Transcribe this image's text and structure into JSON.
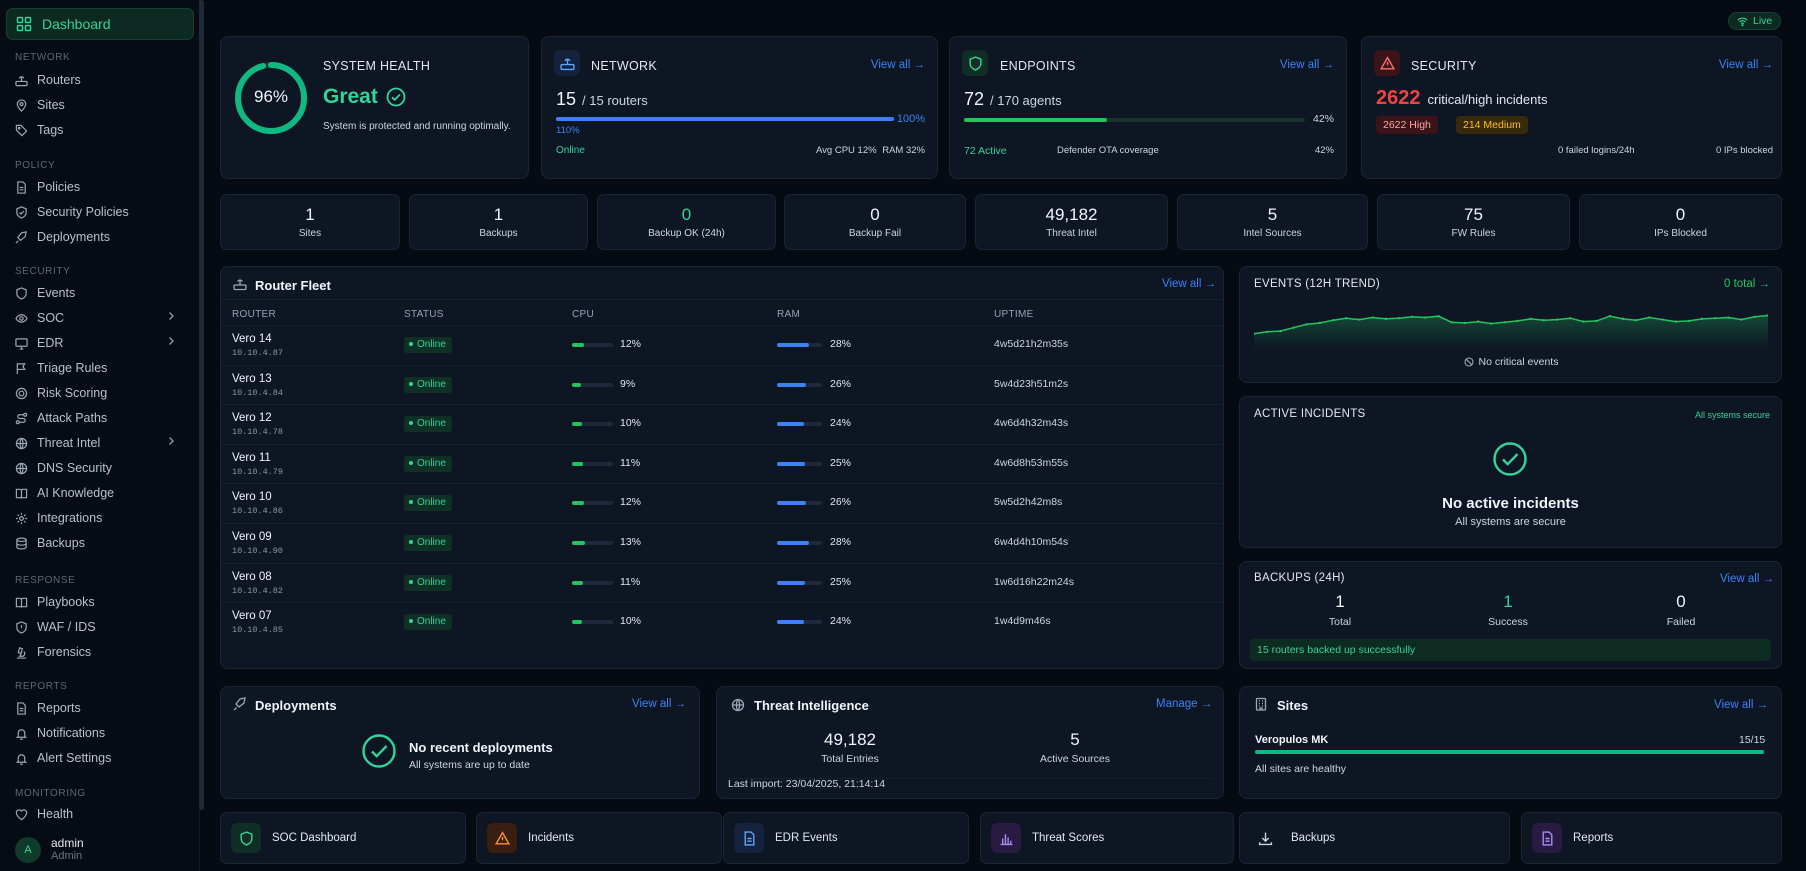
{
  "sidebar": {
    "active": "Dashboard",
    "sections": [
      {
        "title": "NETWORK",
        "items": [
          "Routers",
          "Sites",
          "Tags"
        ]
      },
      {
        "title": "POLICY",
        "items": [
          "Policies",
          "Security Policies",
          "Deployments"
        ]
      },
      {
        "title": "SECURITY",
        "items": [
          "Events",
          "SOC",
          "EDR",
          "Triage Rules",
          "Risk Scoring",
          "Attack Paths",
          "Threat Intel",
          "DNS Security",
          "AI Knowledge",
          "Integrations",
          "Backups"
        ]
      },
      {
        "title": "RESPONSE",
        "items": [
          "Playbooks",
          "WAF / IDS",
          "Forensics"
        ]
      },
      {
        "title": "REPORTS",
        "items": [
          "Reports",
          "Notifications",
          "Alert Settings"
        ]
      },
      {
        "title": "MONITORING",
        "items": [
          "Health"
        ]
      }
    ],
    "user": {
      "initial": "A",
      "name": "admin",
      "role": "Admin"
    }
  },
  "live_label": "Live",
  "health": {
    "title": "SYSTEM HEALTH",
    "percent": "96%",
    "percent_value": 96,
    "status": "Great",
    "desc": "System is protected and running optimally."
  },
  "network": {
    "title": "NETWORK",
    "link": "View all →",
    "count": "15",
    "total": "/ 15 routers",
    "bar_pct": "100%",
    "bar_value": 100,
    "sub": "110%",
    "status": "Online",
    "cpu": "Avg CPU 12%",
    "ram": "RAM 32%"
  },
  "endpoints": {
    "title": "ENDPOINTS",
    "link": "View all →",
    "count": "72",
    "total": "/ 170 agents",
    "bar_pct": "42%",
    "bar_value": 42,
    "active": "72 Active",
    "coverage_label": "Defender OTA coverage",
    "coverage": "42%"
  },
  "security": {
    "title": "SECURITY",
    "link": "View all →",
    "count": "2622",
    "label": "critical/high incidents",
    "high": "2622 High",
    "medium": "214 Medium",
    "failed_logins": "0 failed logins/24h",
    "ips_blocked": "0 IPs blocked"
  },
  "stats": [
    {
      "value": "1",
      "label": "Sites"
    },
    {
      "value": "1",
      "label": "Backups"
    },
    {
      "value": "0",
      "label": "Backup OK (24h)"
    },
    {
      "value": "0",
      "label": "Backup Fail"
    },
    {
      "value": "49,182",
      "label": "Threat Intel"
    },
    {
      "value": "5",
      "label": "Intel Sources"
    },
    {
      "value": "75",
      "label": "FW Rules"
    },
    {
      "value": "0",
      "label": "IPs Blocked"
    }
  ],
  "fleet": {
    "title": "Router Fleet",
    "link": "View all →",
    "columns": [
      "ROUTER",
      "STATUS",
      "CPU",
      "RAM",
      "UPTIME"
    ],
    "rows": [
      {
        "name": "Vero 14",
        "ip": "10.10.4.87",
        "status": "Online",
        "cpu": "12%",
        "cpu_v": 12,
        "ram": "28%",
        "ram_v": 28,
        "uptime": "4w5d21h2m35s"
      },
      {
        "name": "Vero 13",
        "ip": "10.10.4.84",
        "status": "Online",
        "cpu": "9%",
        "cpu_v": 9,
        "ram": "26%",
        "ram_v": 26,
        "uptime": "5w4d23h51m2s"
      },
      {
        "name": "Vero 12",
        "ip": "10.10.4.78",
        "status": "Online",
        "cpu": "10%",
        "cpu_v": 10,
        "ram": "24%",
        "ram_v": 24,
        "uptime": "4w6d4h32m43s"
      },
      {
        "name": "Vero 11",
        "ip": "10.10.4.79",
        "status": "Online",
        "cpu": "11%",
        "cpu_v": 11,
        "ram": "25%",
        "ram_v": 25,
        "uptime": "4w6d8h53m55s"
      },
      {
        "name": "Vero 10",
        "ip": "10.10.4.86",
        "status": "Online",
        "cpu": "12%",
        "cpu_v": 12,
        "ram": "26%",
        "ram_v": 26,
        "uptime": "5w5d2h42m8s"
      },
      {
        "name": "Vero 09",
        "ip": "10.10.4.90",
        "status": "Online",
        "cpu": "13%",
        "cpu_v": 13,
        "ram": "28%",
        "ram_v": 28,
        "uptime": "6w4d4h10m54s"
      },
      {
        "name": "Vero 08",
        "ip": "10.10.4.82",
        "status": "Online",
        "cpu": "11%",
        "cpu_v": 11,
        "ram": "25%",
        "ram_v": 25,
        "uptime": "1w6d16h22m24s"
      },
      {
        "name": "Vero 07",
        "ip": "10.10.4.85",
        "status": "Online",
        "cpu": "10%",
        "cpu_v": 10,
        "ram": "24%",
        "ram_v": 24,
        "uptime": "1w4d9m46s"
      }
    ]
  },
  "events": {
    "title": "EVENTS (12H TREND)",
    "link": "0 total →",
    "note": "No critical events"
  },
  "incidents": {
    "title": "ACTIVE INCIDENTS",
    "badge": "All systems secure",
    "headline": "No active incidents",
    "sub": "All systems are secure"
  },
  "backups": {
    "title": "BACKUPS (24H)",
    "link": "View all →",
    "total": "1",
    "total_label": "Total",
    "success": "1",
    "success_label": "Success",
    "failed": "0",
    "failed_label": "Failed",
    "banner": "15 routers backed up successfully"
  },
  "deployments": {
    "title": "Deployments",
    "link": "View all →",
    "headline": "No recent deployments",
    "sub": "All systems are up to date"
  },
  "threat_intel": {
    "title": "Threat Intelligence",
    "link": "Manage →",
    "entries": "49,182",
    "entries_label": "Total Entries",
    "sources": "5",
    "sources_label": "Active Sources",
    "last_import": "Last import: 23/04/2025, 21:14:14"
  },
  "sites": {
    "title": "Sites",
    "link": "View all →",
    "site_name": "Veropulos MK",
    "site_count": "15/15",
    "site_value": 100,
    "status": "All sites are healthy"
  },
  "quick_links": [
    "SOC Dashboard",
    "Incidents",
    "EDR Events",
    "Threat Scores",
    "Backups",
    "Reports"
  ],
  "chart_data": {
    "type": "line",
    "title": "EVENTS (12H TREND)",
    "x": [
      1,
      2,
      3,
      4,
      5,
      6,
      7,
      8,
      9,
      10,
      11,
      12,
      13,
      14,
      15,
      16,
      17,
      18,
      19,
      20,
      21,
      22,
      23,
      24,
      25,
      26,
      27,
      28,
      29,
      30,
      31,
      32,
      33,
      34,
      35,
      36,
      37,
      38,
      39,
      40
    ],
    "series": [
      {
        "values": [
          1.2,
          1.5,
          1.6,
          2.1,
          2.6,
          2.8,
          3.2,
          3.5,
          3.3,
          3.6,
          3.4,
          3.5,
          3.7,
          3.6,
          3.8,
          2.9,
          2.8,
          3.0,
          2.7,
          2.9,
          3.1,
          3.4,
          3.2,
          3.3,
          3.5,
          3.0,
          3.1,
          3.8,
          3.4,
          3.2,
          3.6,
          3.3,
          3.0,
          3.1,
          3.4,
          3.5,
          3.6,
          3.3,
          3.7,
          3.9
        ]
      }
    ],
    "grid": false,
    "color": "#22c55e"
  }
}
